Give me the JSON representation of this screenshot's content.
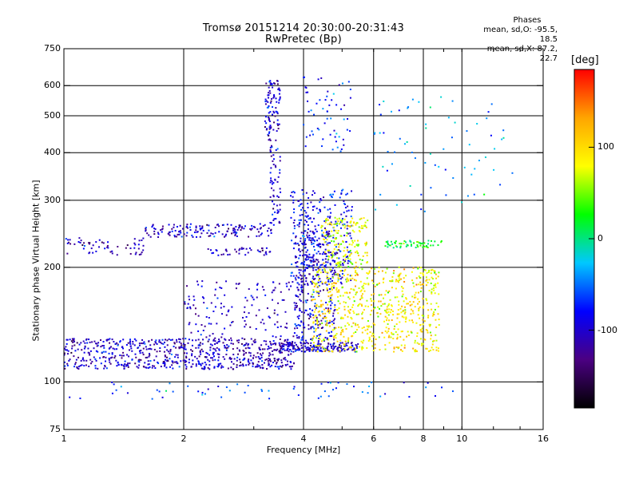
{
  "header": {
    "title_line1": "Tromsø 20151214 20:30:00-20:31:43",
    "title_line2": "RwPretec (Bp)"
  },
  "phase_box": {
    "label": "Phases",
    "line1": "mean, sd,O: -95.5, 18.5",
    "line2": "mean, sd,X:  87.2, 22.7"
  },
  "colorbar": {
    "label": "[deg]",
    "ticks": [
      "100",
      "0",
      "-100"
    ],
    "tick_values": [
      100,
      0,
      -100
    ],
    "range": [
      -185,
      185
    ],
    "colors": [
      "#000000",
      "#4b0082",
      "#0000ff",
      "#00c8ff",
      "#00ff00",
      "#ffff00",
      "#ffa500",
      "#ff0000"
    ]
  },
  "chart_data": {
    "type": "scatter",
    "title": "Tromsø 20151214 20:30:00-20:31:43",
    "subtitle": "RwPretec (Bp)",
    "xlabel": "Frequency [MHz]",
    "ylabel": "Stationary phase Virtual Height [km]",
    "xscale": "log",
    "yscale": "log",
    "xlim": [
      1,
      16
    ],
    "ylim": [
      75,
      750
    ],
    "xticks": [
      1,
      2,
      4,
      6,
      8,
      10,
      16
    ],
    "xtick_labels": [
      "1",
      "2",
      "4",
      "6",
      "8",
      "10",
      "16"
    ],
    "yticks": [
      75,
      100,
      200,
      300,
      400,
      500,
      600,
      750
    ],
    "ytick_labels": [
      "75",
      "100",
      "200",
      "300",
      "400",
      "500",
      "600",
      "750"
    ],
    "grid": true,
    "color_dimension": "phase [deg]",
    "clusters": [
      {
        "x_range": [
          1.0,
          3.8
        ],
        "y_range": [
          108,
          130
        ],
        "phase_mean": -105,
        "n": 700
      },
      {
        "x_range": [
          1.0,
          1.6
        ],
        "y_range": [
          215,
          240
        ],
        "phase_mean": -110,
        "n": 60
      },
      {
        "x_range": [
          1.6,
          3.4
        ],
        "y_range": [
          240,
          260
        ],
        "phase_mean": -100,
        "n": 150
      },
      {
        "x_range": [
          2.3,
          3.3
        ],
        "y_range": [
          215,
          225
        ],
        "phase_mean": -105,
        "n": 40
      },
      {
        "x_range": [
          2.0,
          4.0
        ],
        "y_range": [
          130,
          185
        ],
        "phase_mean": -100,
        "n": 160
      },
      {
        "x_range": [
          3.2,
          3.5
        ],
        "y_range": [
          430,
          620
        ],
        "phase_mean": -100,
        "n": 90
      },
      {
        "x_range": [
          3.3,
          3.5
        ],
        "y_range": [
          260,
          420
        ],
        "phase_mean": -100,
        "n": 60
      },
      {
        "x_range": [
          3.7,
          5.3
        ],
        "y_range": [
          180,
          320
        ],
        "phase_mean": -85,
        "n": 300
      },
      {
        "x_range": [
          3.8,
          4.8
        ],
        "y_range": [
          128,
          250
        ],
        "phase_mean": -95,
        "n": 280
      },
      {
        "x_range": [
          3.5,
          5.5
        ],
        "y_range": [
          120,
          127
        ],
        "phase_mean": -100,
        "n": 170
      },
      {
        "x_range": [
          4.2,
          8.8
        ],
        "y_range": [
          120,
          200
        ],
        "phase_mean": 90,
        "n": 680
      },
      {
        "x_range": [
          4.4,
          5.8
        ],
        "y_range": [
          200,
          270
        ],
        "phase_mean": 80,
        "n": 170
      },
      {
        "x_range": [
          3.9,
          5.3
        ],
        "y_range": [
          400,
          640
        ],
        "phase_mean": -70,
        "n": 60
      },
      {
        "x_range": [
          6.4,
          8.9
        ],
        "y_range": [
          225,
          235
        ],
        "phase_mean": 20,
        "n": 60
      },
      {
        "x_range": [
          6.0,
          13.5
        ],
        "y_range": [
          280,
          560
        ],
        "phase_mean": -40,
        "n": 70
      },
      {
        "x_range": [
          1.0,
          9.5
        ],
        "y_range": [
          90,
          100
        ],
        "phase_mean": -60,
        "n": 60
      }
    ]
  }
}
